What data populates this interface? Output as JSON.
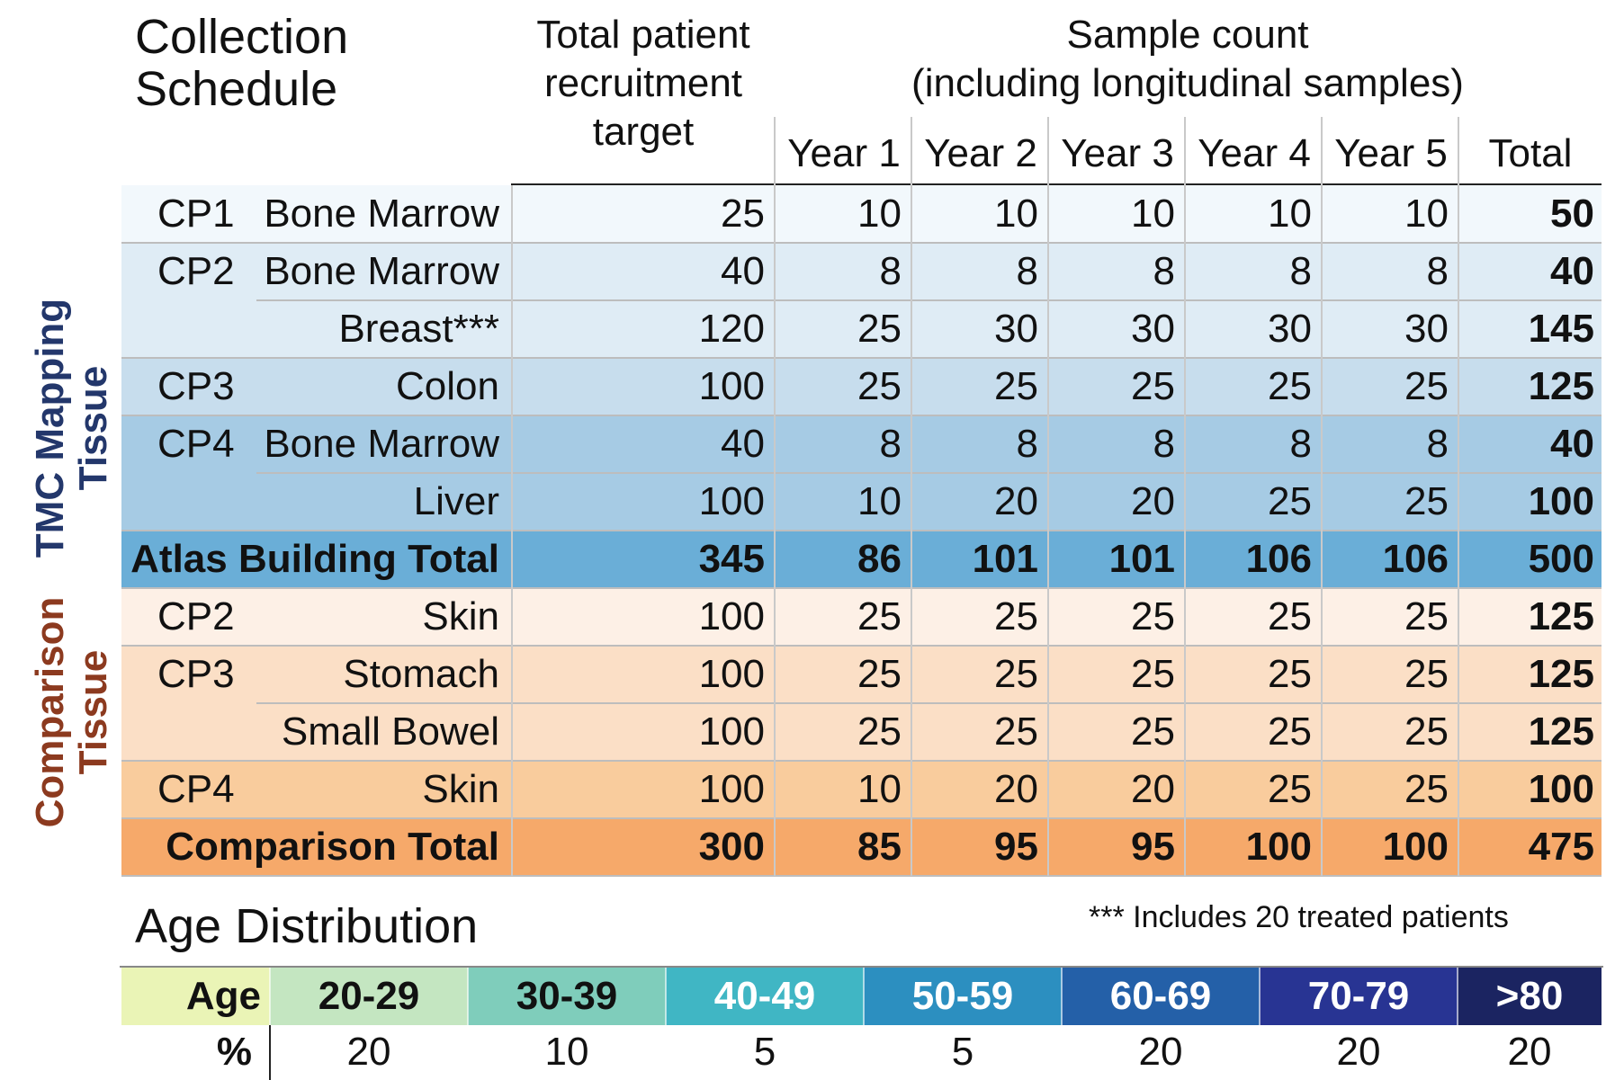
{
  "title": [
    "Collection",
    "Schedule"
  ],
  "header": {
    "target": [
      "Total patient",
      "recruitment",
      "target"
    ],
    "sample": [
      "Sample count",
      "(including longitudinal samples)"
    ],
    "columns": [
      "Year 1",
      "Year 2",
      "Year 3",
      "Year 4",
      "Year 5",
      "Total"
    ]
  },
  "groups": {
    "tmc": [
      "TMC Mapping",
      "Tissue"
    ],
    "comparison": [
      "Comparison",
      "Tissue"
    ]
  },
  "rows": [
    {
      "cp": "CP1",
      "tissue": "Bone Marrow",
      "target": "25",
      "years": [
        "10",
        "10",
        "10",
        "10",
        "10"
      ],
      "total": "50"
    },
    {
      "cp": "CP2",
      "tissue": "Bone Marrow",
      "target": "40",
      "years": [
        "8",
        "8",
        "8",
        "8",
        "8"
      ],
      "total": "40"
    },
    {
      "cp": "",
      "tissue": "Breast***",
      "target": "120",
      "years": [
        "25",
        "30",
        "30",
        "30",
        "30"
      ],
      "total": "145"
    },
    {
      "cp": "CP3",
      "tissue": "Colon",
      "target": "100",
      "years": [
        "25",
        "25",
        "25",
        "25",
        "25"
      ],
      "total": "125"
    },
    {
      "cp": "CP4",
      "tissue": "Bone Marrow",
      "target": "40",
      "years": [
        "8",
        "8",
        "8",
        "8",
        "8"
      ],
      "total": "40"
    },
    {
      "cp": "",
      "tissue": "Liver",
      "target": "100",
      "years": [
        "10",
        "20",
        "20",
        "25",
        "25"
      ],
      "total": "100"
    },
    {
      "cp": "",
      "tissue": "Atlas Building Total",
      "target": "345",
      "years": [
        "86",
        "101",
        "101",
        "106",
        "106"
      ],
      "total": "500"
    },
    {
      "cp": "CP2",
      "tissue": "Skin",
      "target": "100",
      "years": [
        "25",
        "25",
        "25",
        "25",
        "25"
      ],
      "total": "125"
    },
    {
      "cp": "CP3",
      "tissue": "Stomach",
      "target": "100",
      "years": [
        "25",
        "25",
        "25",
        "25",
        "25"
      ],
      "total": "125"
    },
    {
      "cp": "",
      "tissue": "Small Bowel",
      "target": "100",
      "years": [
        "25",
        "25",
        "25",
        "25",
        "25"
      ],
      "total": "125"
    },
    {
      "cp": "CP4",
      "tissue": "Skin",
      "target": "100",
      "years": [
        "10",
        "20",
        "20",
        "25",
        "25"
      ],
      "total": "100"
    },
    {
      "cp": "",
      "tissue": "Comparison Total",
      "target": "300",
      "years": [
        "85",
        "95",
        "95",
        "100",
        "100"
      ],
      "total": "475"
    }
  ],
  "age": {
    "title": "Age Distribution",
    "footnote": "*** Includes 20 treated patients",
    "age_label": "Age",
    "pct_label": "%",
    "bins": [
      "20-29",
      "30-39",
      "40-49",
      "50-59",
      "60-69",
      "70-79",
      ">80"
    ],
    "percents": [
      "20",
      "10",
      "5",
      "5",
      "20",
      "20",
      "20"
    ],
    "colors": [
      "#eaf4b6",
      "#c4e6c1",
      "#7fcdbb",
      "#40b6c4",
      "#2c8fc0",
      "#2460a8",
      "#283493",
      "#1b2461"
    ]
  },
  "colors": {
    "tmc_label": "#23376b",
    "comparison_label": "#8c3a1f",
    "rows": [
      "#f2f8fc",
      "#dfecf5",
      "#dfecf5",
      "#c7dded",
      "#a6cbe4",
      "#a6cbe4",
      "#6aaed7",
      "#fdf0e6",
      "#fbdfc6",
      "#fbdfc6",
      "#f9cc9d",
      "#f6a96a"
    ]
  }
}
